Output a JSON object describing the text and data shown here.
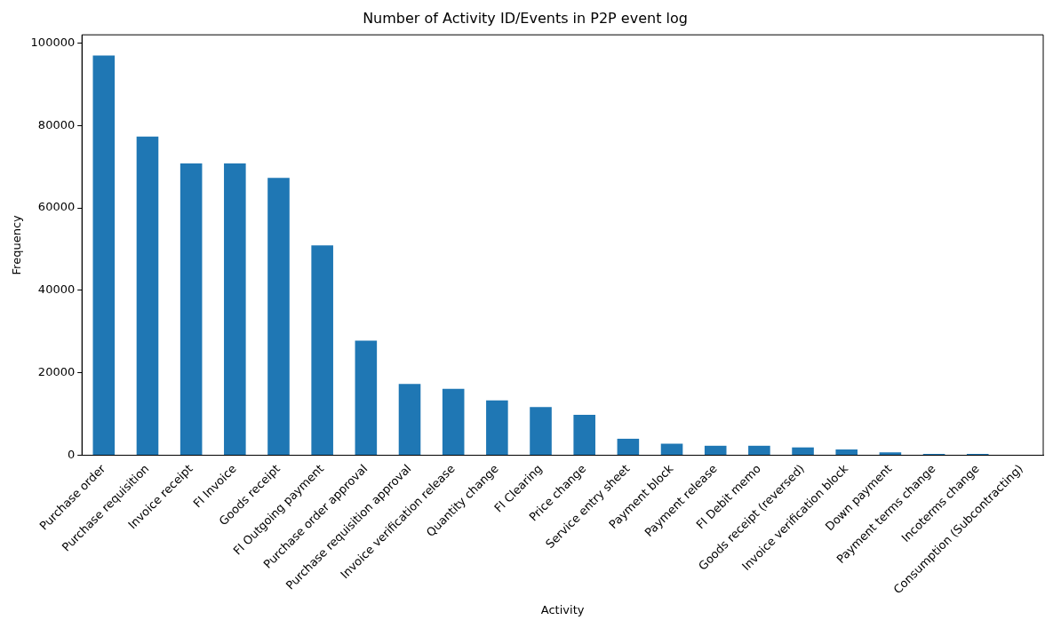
{
  "chart_data": {
    "type": "bar",
    "title": "Number of Activity ID/Events in P2P event log",
    "xlabel": "Activity",
    "ylabel": "Frequency",
    "categories": [
      "Purchase order",
      "Purchase requisition",
      "Invoice receipt",
      "FI Invoice",
      "Goods receipt",
      "FI Outgoing payment",
      "Purchase order approval",
      "Purchase requisition approval",
      "Invoice verification release",
      "Quantity change",
      "FI Clearing",
      "Price change",
      "Service entry sheet",
      "Payment block",
      "Payment release",
      "FI Debit memo",
      "Goods receipt (reversed)",
      "Invoice verification block",
      "Down payment",
      "Payment terms change",
      "Incoterms change",
      "Consumption (Subcontracting)"
    ],
    "values": [
      97000,
      77300,
      70800,
      70800,
      67300,
      50900,
      27800,
      17300,
      16100,
      13300,
      11700,
      9800,
      4000,
      2800,
      2300,
      2300,
      1900,
      1400,
      700,
      300,
      300,
      null
    ],
    "color": "#1f77b4",
    "ylim": [
      0,
      102000
    ],
    "yticks": [
      0,
      20000,
      40000,
      60000,
      80000,
      100000
    ],
    "grid": false,
    "legend": false
  }
}
